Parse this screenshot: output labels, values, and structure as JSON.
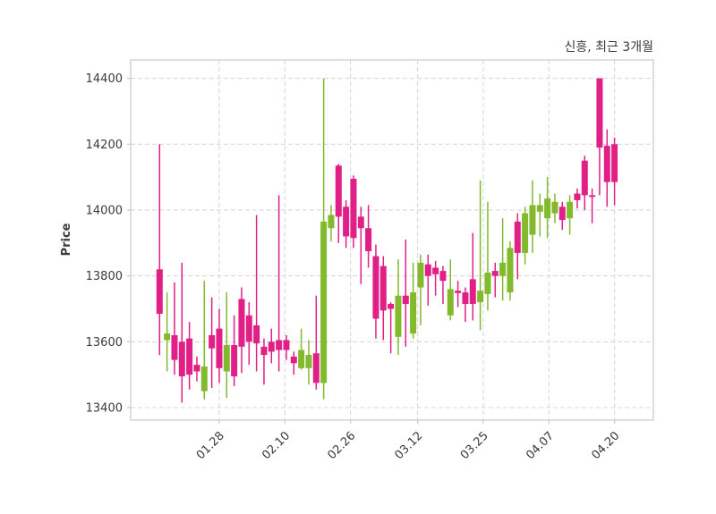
{
  "chart_data": {
    "type": "candlestick",
    "title": "신흥, 최근 3개월",
    "ylabel": "Price",
    "xlabel": "",
    "legend": null,
    "grid": "dashed",
    "ylim": [
      13362,
      14456
    ],
    "yticks": [
      13400,
      13600,
      13800,
      14000,
      14200,
      14400
    ],
    "xticks": [
      {
        "label": "01.28",
        "pos": 8.0
      },
      {
        "label": "02.10",
        "pos": 16.8
      },
      {
        "label": "02.26",
        "pos": 25.6
      },
      {
        "label": "03.12",
        "pos": 34.6
      },
      {
        "label": "03.25",
        "pos": 43.4
      },
      {
        "label": "04.07",
        "pos": 52.2
      },
      {
        "label": "04.20",
        "pos": 61.0
      }
    ],
    "colors": {
      "up": "#82b92d",
      "down": "#e01f87",
      "grid": "#d4d4d4",
      "spine": "#c9c9c9",
      "text": "#3a3a3a",
      "background": "#ffffff"
    },
    "series_name": "ohlc",
    "candles_format": [
      "open",
      "high",
      "low",
      "close"
    ],
    "candles": [
      [
        13820,
        14200,
        13560,
        13685
      ],
      [
        13605,
        13750,
        13510,
        13625
      ],
      [
        13620,
        13780,
        13500,
        13545
      ],
      [
        13600,
        13840,
        13415,
        13495
      ],
      [
        13610,
        13660,
        13455,
        13500
      ],
      [
        13530,
        13555,
        13480,
        13510
      ],
      [
        13450,
        13785,
        13425,
        13525
      ],
      [
        13620,
        13735,
        13460,
        13580
      ],
      [
        13640,
        13700,
        13475,
        13520
      ],
      [
        13510,
        13750,
        13430,
        13590
      ],
      [
        13590,
        13680,
        13465,
        13495
      ],
      [
        13730,
        13765,
        13505,
        13585
      ],
      [
        13680,
        13720,
        13530,
        13600
      ],
      [
        13650,
        13985,
        13510,
        13595
      ],
      [
        13585,
        13610,
        13470,
        13560
      ],
      [
        13600,
        13640,
        13535,
        13570
      ],
      [
        13605,
        14045,
        13510,
        13575
      ],
      [
        13605,
        13620,
        13545,
        13575
      ],
      [
        13555,
        13570,
        13500,
        13535
      ],
      [
        13520,
        13640,
        13515,
        13575
      ],
      [
        13520,
        13605,
        13470,
        13560
      ],
      [
        13565,
        13740,
        13455,
        13475
      ],
      [
        13475,
        14400,
        13425,
        13965
      ],
      [
        13945,
        14015,
        13905,
        13985
      ],
      [
        14135,
        14140,
        13900,
        13980
      ],
      [
        14010,
        14030,
        13885,
        13920
      ],
      [
        14095,
        14105,
        13885,
        13915
      ],
      [
        13980,
        14010,
        13775,
        13945
      ],
      [
        13945,
        14015,
        13825,
        13875
      ],
      [
        13860,
        13895,
        13610,
        13670
      ],
      [
        13830,
        13860,
        13605,
        13695
      ],
      [
        13715,
        13720,
        13565,
        13700
      ],
      [
        13615,
        13850,
        13560,
        13740
      ],
      [
        13740,
        13910,
        13585,
        13715
      ],
      [
        13625,
        13840,
        13610,
        13750
      ],
      [
        13765,
        13865,
        13650,
        13840
      ],
      [
        13835,
        13865,
        13710,
        13800
      ],
      [
        13825,
        13845,
        13740,
        13805
      ],
      [
        13815,
        13830,
        13715,
        13785
      ],
      [
        13680,
        13850,
        13665,
        13760
      ],
      [
        13755,
        13785,
        13705,
        13748
      ],
      [
        13750,
        13765,
        13660,
        13715
      ],
      [
        13790,
        13930,
        13665,
        13715
      ],
      [
        13720,
        14090,
        13635,
        13755
      ],
      [
        13745,
        14025,
        13695,
        13810
      ],
      [
        13815,
        13840,
        13735,
        13800
      ],
      [
        13800,
        13975,
        13725,
        13840
      ],
      [
        13750,
        13905,
        13725,
        13885
      ],
      [
        13965,
        13990,
        13790,
        13870
      ],
      [
        13870,
        14010,
        13835,
        13990
      ],
      [
        13925,
        14090,
        13870,
        14015
      ],
      [
        13995,
        14050,
        13920,
        14015
      ],
      [
        13975,
        14100,
        13915,
        14035
      ],
      [
        13990,
        14050,
        13960,
        14025
      ],
      [
        14010,
        14025,
        13940,
        13970
      ],
      [
        13975,
        14045,
        13925,
        14025
      ],
      [
        14050,
        14065,
        14005,
        14030
      ],
      [
        14150,
        14165,
        14000,
        14045
      ],
      [
        14045,
        14065,
        13960,
        14040
      ],
      [
        14400,
        14400,
        14045,
        14190
      ],
      [
        14195,
        14245,
        14010,
        14085
      ],
      [
        14200,
        14220,
        14015,
        14085
      ]
    ]
  }
}
